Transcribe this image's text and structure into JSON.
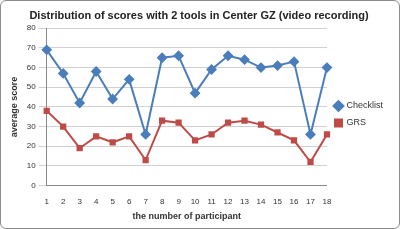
{
  "chart_data": {
    "type": "line",
    "title": "Distribution of scores with 2 tools in Center GZ (video recording)",
    "x_label": "the number of participant",
    "y_label": "average score",
    "categories": [
      1,
      2,
      3,
      4,
      5,
      6,
      7,
      8,
      9,
      10,
      11,
      12,
      13,
      14,
      15,
      16,
      17,
      18
    ],
    "series": [
      {
        "name": "Checklist",
        "color": "#4a7ebb",
        "marker": "diamond",
        "line_style": "solid",
        "values": [
          69,
          57,
          42,
          58,
          44,
          54,
          26,
          65,
          66,
          47,
          59,
          66,
          64,
          60,
          61,
          63,
          26,
          60
        ]
      },
      {
        "name": "GRS",
        "color": "#be4b48",
        "marker": "square",
        "line_style": "solid",
        "values": [
          38,
          30,
          19,
          25,
          22,
          25,
          13,
          33,
          32,
          23,
          26,
          32,
          33,
          31,
          27,
          23,
          12,
          26
        ]
      }
    ],
    "ylim": [
      0,
      80
    ],
    "yticks": [
      0,
      10,
      20,
      30,
      40,
      50,
      60,
      70,
      80
    ],
    "grid": true,
    "legend": "right"
  }
}
